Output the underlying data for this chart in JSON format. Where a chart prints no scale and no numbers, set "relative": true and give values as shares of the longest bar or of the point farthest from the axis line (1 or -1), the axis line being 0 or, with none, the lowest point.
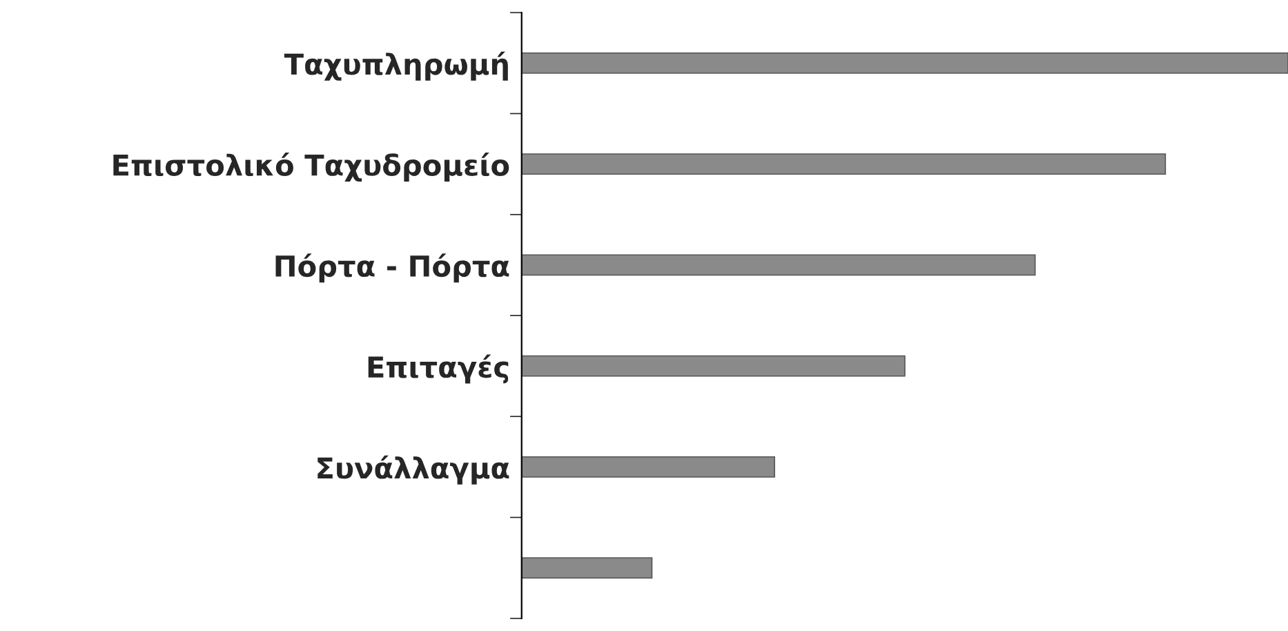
{
  "chart_data": {
    "type": "bar",
    "orientation": "horizontal",
    "relative": true,
    "categories": [
      "Ταχυπληρωμή",
      "Επιστολικό Ταχυδρομείο",
      "Πόρτα - Πόρτα",
      "Επιταγές",
      "Συνάλλαγμα",
      null
    ],
    "values": [
      1,
      0.84,
      0.67,
      0.5,
      0.33,
      0.17
    ],
    "color": "#8a8a8a",
    "grid": false,
    "legend": false
  }
}
